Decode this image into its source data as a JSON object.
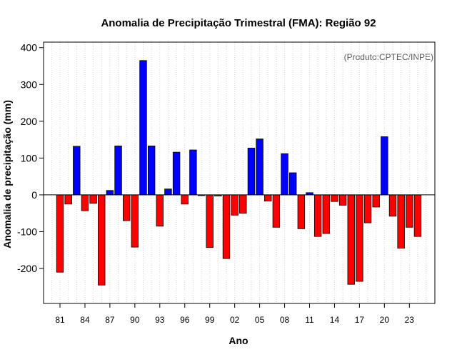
{
  "chart_data": {
    "type": "bar",
    "title": "Anomalia de Precipitação Trimestral (FMA): Região 92",
    "source_label": "(Produto:CPTEC/INPE)",
    "xlabel": "Ano",
    "ylabel": "Anomalia de precipitação (mm)",
    "ylim": [
      -295,
      415
    ],
    "yticks": [
      -200,
      -100,
      0,
      100,
      200,
      300,
      400
    ],
    "grid": "vertical dotted",
    "colors": {
      "positive": "#0000ff",
      "negative": "#ff0000",
      "grid": "#d3d3d3",
      "axis": "#000000"
    },
    "xtick_labels": [
      "81",
      "84",
      "87",
      "90",
      "93",
      "96",
      "99",
      "02",
      "05",
      "08",
      "11",
      "14",
      "17",
      "20",
      "23"
    ],
    "years": [
      1981,
      1982,
      1983,
      1984,
      1985,
      1986,
      1987,
      1988,
      1989,
      1990,
      1991,
      1992,
      1993,
      1994,
      1995,
      1996,
      1997,
      1998,
      1999,
      2000,
      2001,
      2002,
      2003,
      2004,
      2005,
      2006,
      2007,
      2008,
      2009,
      2010,
      2011,
      2012,
      2013,
      2014,
      2015,
      2016,
      2017,
      2018,
      2019,
      2020,
      2021,
      2022,
      2023,
      2024
    ],
    "values": [
      -210,
      -25,
      132,
      -43,
      -23,
      -245,
      12,
      133,
      -70,
      -142,
      365,
      133,
      -85,
      16,
      116,
      -25,
      122,
      -2,
      -143,
      -3,
      -173,
      -55,
      -50,
      127,
      152,
      -17,
      -88,
      112,
      60,
      -92,
      6,
      -113,
      -105,
      -18,
      -28,
      -243,
      -235,
      -76,
      -33,
      158,
      -58,
      -145,
      -88,
      -113
    ]
  }
}
